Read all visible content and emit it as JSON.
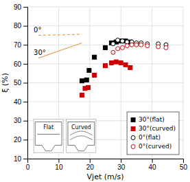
{
  "chart_data": {
    "type": "scatter",
    "xlabel": "Vjet (m/s)",
    "ylabel": "ξ (%)",
    "xlim": [
      0,
      50
    ],
    "ylim": [
      10,
      90
    ],
    "xticks": [
      0,
      10,
      20,
      30,
      40,
      50
    ],
    "yticks": [
      10,
      20,
      30,
      40,
      50,
      60,
      70,
      80,
      90
    ],
    "grid": true,
    "legend": "lower right",
    "series": [
      {
        "name": "30°(flat)",
        "color": "#000000",
        "marker": "square",
        "x": [
          17.5,
          19.0,
          19.8,
          21.5,
          25.0,
          27.0,
          28.5,
          30.0,
          31.5,
          33.0
        ],
        "values": [
          51.0,
          51.5,
          56.5,
          63.5,
          68.5,
          71.0,
          71.5,
          72.0,
          72.0,
          71.5
        ]
      },
      {
        "name": "30°(curved)",
        "color": "#cc0000",
        "marker": "square",
        "x": [
          17.5,
          18.5,
          19.5,
          21.5,
          25.0,
          27.0,
          28.5,
          30.0,
          31.5,
          33.0
        ],
        "values": [
          43.5,
          47.0,
          47.5,
          54.0,
          59.0,
          60.5,
          61.0,
          60.5,
          59.5,
          58.0
        ]
      },
      {
        "name": "0°(flat)",
        "color": "#000000",
        "marker": "circle-open",
        "x": [
          27.5,
          29.0,
          30.5,
          32.0,
          33.5,
          35.0,
          36.5,
          38.5,
          42.0,
          44.5
        ],
        "values": [
          70.5,
          72.5,
          72.0,
          71.5,
          71.5,
          71.0,
          71.0,
          70.5,
          70.5,
          70.0
        ]
      },
      {
        "name": "0°(curved)",
        "color": "#cc0000",
        "marker": "circle-open",
        "x": [
          27.5,
          29.0,
          30.5,
          32.0,
          33.5,
          35.0,
          36.5,
          38.5,
          42.0,
          44.5
        ],
        "values": [
          66.0,
          68.0,
          68.5,
          69.5,
          70.0,
          70.0,
          70.0,
          69.5,
          69.0,
          68.5
        ]
      }
    ],
    "annotations": [
      {
        "text": "0°",
        "x": 2.0,
        "y": 76.5,
        "line_x": [
          3.5,
          17.5
        ],
        "line_y": [
          75.0,
          75.5
        ],
        "color": "#e0a060",
        "line_style": "dashed"
      },
      {
        "text": "30°",
        "x": 2.0,
        "y": 64.5,
        "line_x": [
          3.5,
          17.5
        ],
        "line_y": [
          63.0,
          71.0
        ],
        "color": "#e0a060",
        "line_style": "solid"
      },
      {
        "text": "Flat",
        "sketch": "flat"
      },
      {
        "text": "Curved",
        "sketch": "curved"
      }
    ]
  }
}
